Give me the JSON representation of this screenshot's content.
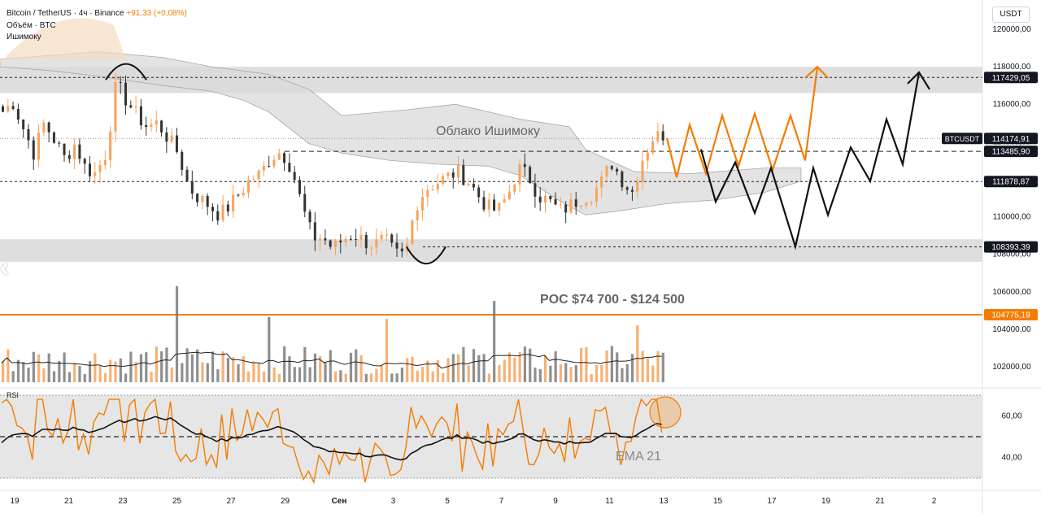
{
  "header": {
    "symbol": "Bitcoin / TetherUS",
    "interval": "4ч",
    "exchange": "Binance",
    "change": "+91,33 (+0,08%)",
    "volume_label": "Объём · BTC",
    "indicator_label": "Ишимоку"
  },
  "currency": "USDT",
  "rsi_label": "RSI",
  "colors": {
    "bull": "#f7a35c",
    "bear": "#7b7b7b",
    "accent": "#f57c00",
    "cloud": "#d9d9d9",
    "zone": "#dedede"
  },
  "chart_data": {
    "type": "candlestick",
    "y_ticks": [
      "120000,00",
      "118000,00",
      "116000,00",
      "114000,00",
      "112000,00",
      "110000,00",
      "108000,00",
      "106000,00",
      "104000,00",
      "102000,00"
    ],
    "y_tick_values": [
      120000,
      118000,
      116000,
      114000,
      112000,
      110000,
      108000,
      106000,
      104000,
      102000
    ],
    "ylim": [
      101000,
      121600
    ],
    "x_ticks": [
      "19",
      "21",
      "23",
      "25",
      "27",
      "29",
      "Сен",
      "3",
      "5",
      "7",
      "9",
      "11",
      "13",
      "15",
      "17",
      "19",
      "21",
      "2"
    ],
    "price_labels": [
      {
        "name": "level-117429",
        "value": 117429.05,
        "text": "117429,05",
        "style": "dark"
      },
      {
        "name": "btcusdt",
        "value": 114174.91,
        "text": "114174,91",
        "style": "dark",
        "tag": "BTCUSDT"
      },
      {
        "name": "level-113485",
        "value": 113485.9,
        "text": "113485,90",
        "style": "dark"
      },
      {
        "name": "level-111878",
        "value": 111878.87,
        "text": "111878,87",
        "style": "dark"
      },
      {
        "name": "level-108393",
        "value": 108393.39,
        "text": "108393,39",
        "style": "dark"
      },
      {
        "name": "poc",
        "value": 104775.19,
        "text": "104775,19",
        "style": "orange"
      }
    ],
    "annotations": {
      "cloud": "Облако Ишимоку",
      "poc": "POC $74 700 - $124 500",
      "ema": "EMA 21"
    },
    "rsi": {
      "ticks": [
        "60,00",
        "40,00"
      ],
      "tick_values": [
        60,
        40
      ],
      "ylim": [
        25,
        75
      ],
      "upper": 70,
      "lower": 30,
      "mid": 50
    },
    "zones": [
      [
        116600,
        118000
      ],
      [
        107600,
        108800
      ]
    ],
    "close_path": [
      115600,
      116100,
      114700,
      113400,
      115000,
      114100,
      113100,
      113900,
      112600,
      112300,
      113400,
      117100,
      116200,
      115400,
      114800,
      115000,
      114200,
      113400,
      111600,
      111000,
      110600,
      110100,
      110600,
      111300,
      112000,
      112300,
      113200,
      113500,
      112600,
      110600,
      108900,
      108900,
      108300,
      108800,
      109100,
      108700,
      108500,
      108800,
      108000,
      107900,
      110600,
      111500,
      111800,
      112100,
      112400,
      112000,
      111200,
      110500,
      110300,
      111200,
      112600,
      112100,
      111100,
      110800,
      110300,
      110600,
      111000,
      111200,
      111800,
      112900,
      112000,
      111300,
      113100,
      114200,
      114400
    ]
  }
}
